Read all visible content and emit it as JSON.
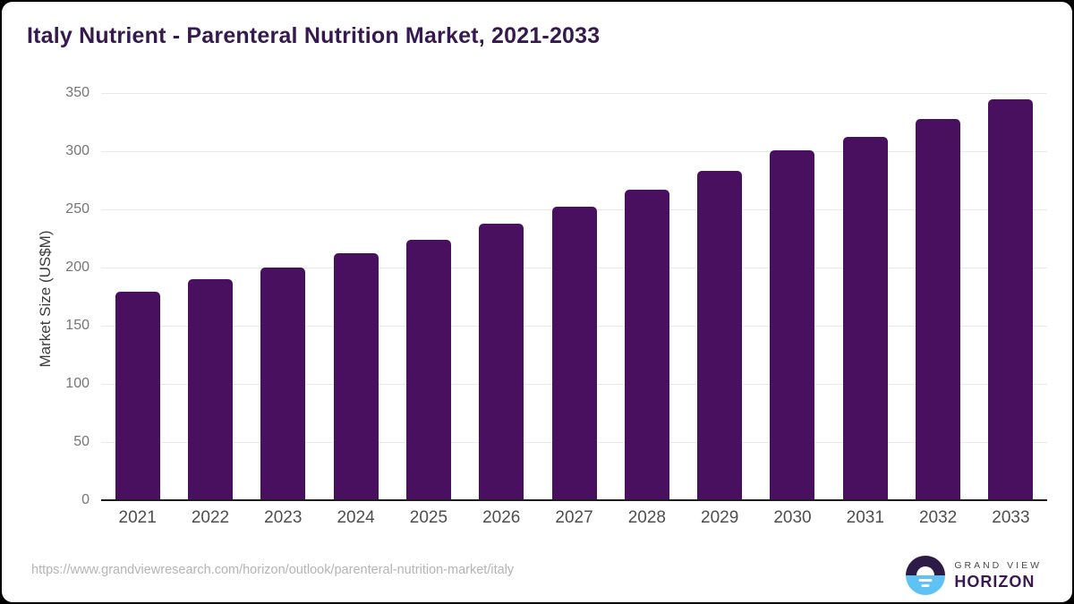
{
  "title": "Italy Nutrient - Parenteral Nutrition Market, 2021-2033",
  "chart_data": {
    "type": "bar",
    "title": "Italy Nutrient - Parenteral Nutrition Market, 2021-2033",
    "categories": [
      "2021",
      "2022",
      "2023",
      "2024",
      "2025",
      "2026",
      "2027",
      "2028",
      "2029",
      "2030",
      "2031",
      "2032",
      "2033"
    ],
    "values": [
      179,
      190,
      200,
      212,
      224,
      238,
      252,
      267,
      283,
      301,
      312,
      328,
      345
    ],
    "xlabel": "",
    "ylabel": "Market Size (US$M)",
    "ylim": [
      0,
      350
    ],
    "yticks": [
      0,
      50,
      100,
      150,
      200,
      250,
      300,
      350
    ],
    "grid": true,
    "legend_position": "none",
    "bar_color": "#4a1060"
  },
  "colors": {
    "title": "#36194e",
    "bar": "#4a1060",
    "gridline": "#e9e9e9",
    "axis_line": "#1c1c1c",
    "y_tick_label": "#767676",
    "x_tick_label": "#4e4e4e",
    "url_text": "#b4b4b4",
    "logo_purple": "#2d1a46",
    "logo_blue": "#5ec3f2"
  },
  "footer": {
    "source_url": "https://www.grandviewresearch.com/horizon/outlook/parenteral-nutrition-market/italy",
    "logo": {
      "line1": "GRAND VIEW",
      "line2": "HORIZON"
    }
  }
}
